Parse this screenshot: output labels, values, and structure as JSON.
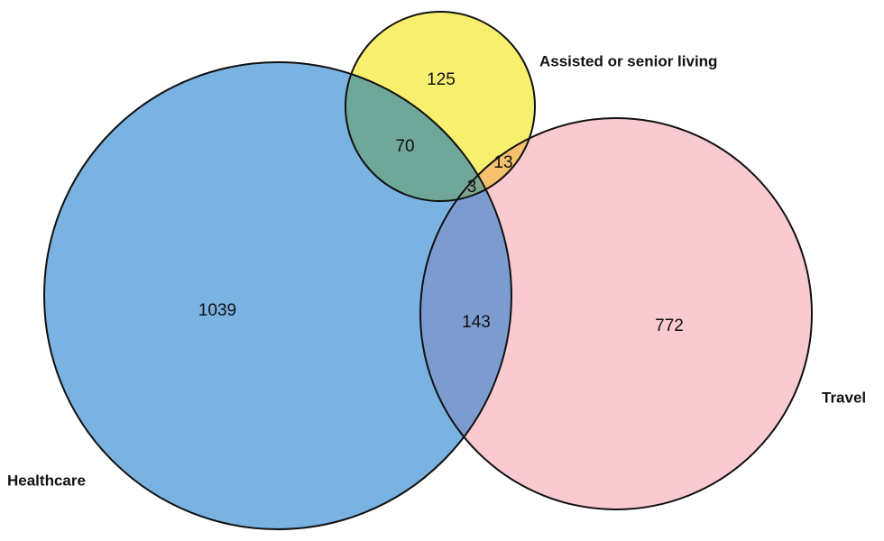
{
  "sets": {
    "healthcare": {
      "label": "Healthcare",
      "color": "#7AB2E2"
    },
    "assisted": {
      "label": "Assisted or senior living",
      "color": "#F7F06E"
    },
    "travel": {
      "label": "Travel",
      "color": "#F9CACF"
    }
  },
  "regions": {
    "healthcare_only": "1039",
    "assisted_only": "125",
    "travel_only": "772",
    "healthcare_assisted": "70",
    "assisted_travel": "13",
    "healthcare_travel": "143",
    "all_three": "3"
  },
  "overlap_colors": {
    "healthcare_assisted": "#6FA89A",
    "assisted_travel": "#F5C16E",
    "healthcare_travel": "#7C9CD0",
    "all_three": "#7EA48E"
  }
}
